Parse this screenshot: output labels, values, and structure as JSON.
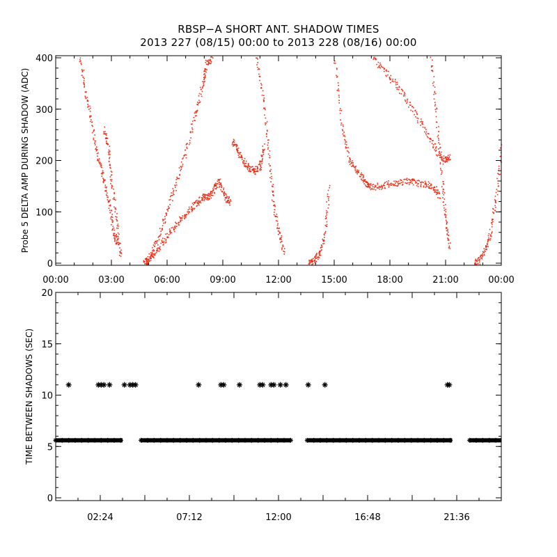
{
  "title_line1": "RBSP−A SHORT ANT. SHADOW TIMES",
  "title_line2": "2013 227 (08/15) 00:00 to 2013 228 (08/16) 00:00",
  "colors": {
    "trace": "#e8301a",
    "axis": "#000000",
    "background": "#ffffff"
  },
  "chart_data": [
    {
      "type": "scatter",
      "title": "RBSP−A SHORT ANT. SHADOW TIMES",
      "subtitle": "2013 227 (08/15) 00:00 to 2013 228 (08/16) 00:00",
      "xlabel": "",
      "ylabel": "Probe 5 DELTA AMP DURING SHADOW (ADC)",
      "xlim": [
        0,
        24
      ],
      "ylim": [
        0,
        400
      ],
      "x_unit": "hours",
      "xticks": [
        "00:00",
        "03:00",
        "06:00",
        "09:00",
        "12:00",
        "15:00",
        "18:00",
        "21:00",
        "00:00"
      ],
      "yticks": [
        "0",
        "100",
        "200",
        "300",
        "400"
      ],
      "grid": false,
      "series": [
        {
          "color": "#e8301a",
          "segments": [
            {
              "x": [
                1.3,
                1.6,
                2.0,
                2.3,
                2.6,
                2.9,
                3.1,
                3.3
              ],
              "y": [
                400,
                330,
                260,
                200,
                160,
                110,
                60,
                40
              ]
            },
            {
              "x": [
                2.6,
                2.8,
                3.0,
                3.3,
                3.5
              ],
              "y": [
                260,
                230,
                160,
                70,
                10
              ]
            },
            {
              "x": [
                4.7,
                5.0,
                5.5,
                6.0,
                6.5,
                7.0,
                7.5,
                7.9,
                8.1,
                8.4
              ],
              "y": [
                0,
                10,
                50,
                105,
                160,
                220,
                290,
                350,
                390,
                400
              ]
            },
            {
              "x": [
                4.8,
                5.2,
                5.7,
                6.2,
                6.7,
                7.2,
                7.6,
                7.9
              ],
              "y": [
                0,
                15,
                40,
                65,
                85,
                105,
                120,
                130
              ]
            },
            {
              "x": [
                7.9,
                8.2,
                8.5,
                8.8,
                9.1,
                9.4
              ],
              "y": [
                130,
                130,
                145,
                160,
                130,
                120
              ]
            },
            {
              "x": [
                9.5,
                9.8,
                10.1,
                10.4,
                10.7,
                11.0,
                11.2
              ],
              "y": [
                240,
                220,
                200,
                185,
                180,
                190,
                230
              ]
            },
            {
              "x": [
                10.8,
                11.2,
                11.5,
                11.7,
                12.0,
                12.3
              ],
              "y": [
                400,
                310,
                200,
                120,
                60,
                20
              ]
            },
            {
              "x": [
                13.6,
                13.9,
                14.2,
                14.5,
                14.7
              ],
              "y": [
                0,
                5,
                20,
                60,
                150
              ]
            },
            {
              "x": [
                15.0,
                15.4,
                15.8,
                16.2,
                16.6,
                16.9
              ],
              "y": [
                400,
                270,
                200,
                180,
                160,
                150
              ]
            },
            {
              "x": [
                16.8,
                17.4,
                18.0,
                18.6,
                19.2,
                19.8,
                20.3,
                20.7
              ],
              "y": [
                150,
                150,
                155,
                160,
                160,
                155,
                150,
                130
              ]
            },
            {
              "x": [
                17.1,
                17.8,
                18.5,
                19.2,
                19.9,
                20.5,
                20.9,
                21.2
              ],
              "y": [
                400,
                370,
                340,
                300,
                260,
                220,
                200,
                210
              ]
            },
            {
              "x": [
                20.2,
                20.5,
                20.8,
                21.0,
                21.2
              ],
              "y": [
                400,
                280,
                160,
                80,
                30
              ]
            },
            {
              "x": [
                22.5,
                22.8,
                23.1,
                23.4,
                23.7,
                24.0
              ],
              "y": [
                0,
                5,
                25,
                60,
                130,
                230
              ]
            }
          ]
        }
      ]
    },
    {
      "type": "scatter",
      "xlabel": "",
      "ylabel": "TIME BETWEEN SHADOWS (SEC)",
      "xlim": [
        0,
        24
      ],
      "ylim": [
        0,
        20
      ],
      "x_unit": "hours",
      "xticks": [
        "02:24",
        "07:12",
        "12:00",
        "16:48",
        "21:36"
      ],
      "yticks": [
        "0",
        "5",
        "10",
        "15",
        "20"
      ],
      "grid": false,
      "marker": "asterisk",
      "baseline": {
        "y": 5.6,
        "ranges": [
          [
            0.0,
            3.6
          ],
          [
            4.6,
            12.65
          ],
          [
            13.55,
            21.35
          ],
          [
            22.3,
            24.0
          ]
        ]
      },
      "series": [
        {
          "color": "#000000",
          "x": [
            0.7,
            2.3,
            2.45,
            2.6,
            2.9,
            3.7,
            4.0,
            4.15,
            4.3,
            7.7,
            8.9,
            9.05,
            9.9,
            11.0,
            11.15,
            11.6,
            11.75,
            12.1,
            12.4,
            13.6,
            14.5,
            21.1,
            21.2
          ],
          "y": [
            11,
            11,
            11,
            11,
            11,
            11,
            11,
            11,
            11,
            11,
            11,
            11,
            11,
            11,
            11,
            11,
            11,
            11,
            11,
            11,
            11,
            11,
            11
          ]
        }
      ]
    }
  ]
}
